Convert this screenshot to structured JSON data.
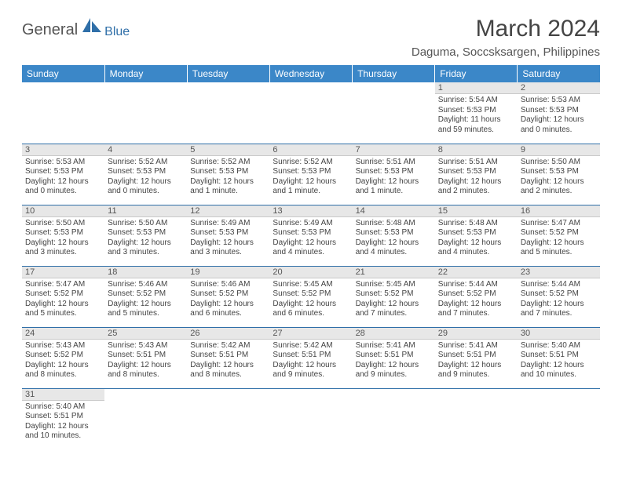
{
  "header": {
    "logo_general": "General",
    "logo_blue": "Blue",
    "title": "March 2024",
    "location": "Daguma, Soccsksargen, Philippines"
  },
  "styling": {
    "header_bg": "#3b87c8",
    "header_text": "#ffffff",
    "daynum_bg": "#e7e7e7",
    "border_color": "#2f6fa8",
    "page_bg": "#ffffff",
    "logo_blue_color": "#2f6fa8",
    "title_fontsize": 30,
    "location_fontsize": 15,
    "cell_fontsize": 10
  },
  "day_names": [
    "Sunday",
    "Monday",
    "Tuesday",
    "Wednesday",
    "Thursday",
    "Friday",
    "Saturday"
  ],
  "weeks": [
    [
      {
        "blank": true
      },
      {
        "blank": true
      },
      {
        "blank": true
      },
      {
        "blank": true
      },
      {
        "blank": true
      },
      {
        "day": "1",
        "sunrise": "Sunrise: 5:54 AM",
        "sunset": "Sunset: 5:53 PM",
        "daylight": "Daylight: 11 hours and 59 minutes."
      },
      {
        "day": "2",
        "sunrise": "Sunrise: 5:53 AM",
        "sunset": "Sunset: 5:53 PM",
        "daylight": "Daylight: 12 hours and 0 minutes."
      }
    ],
    [
      {
        "day": "3",
        "sunrise": "Sunrise: 5:53 AM",
        "sunset": "Sunset: 5:53 PM",
        "daylight": "Daylight: 12 hours and 0 minutes."
      },
      {
        "day": "4",
        "sunrise": "Sunrise: 5:52 AM",
        "sunset": "Sunset: 5:53 PM",
        "daylight": "Daylight: 12 hours and 0 minutes."
      },
      {
        "day": "5",
        "sunrise": "Sunrise: 5:52 AM",
        "sunset": "Sunset: 5:53 PM",
        "daylight": "Daylight: 12 hours and 1 minute."
      },
      {
        "day": "6",
        "sunrise": "Sunrise: 5:52 AM",
        "sunset": "Sunset: 5:53 PM",
        "daylight": "Daylight: 12 hours and 1 minute."
      },
      {
        "day": "7",
        "sunrise": "Sunrise: 5:51 AM",
        "sunset": "Sunset: 5:53 PM",
        "daylight": "Daylight: 12 hours and 1 minute."
      },
      {
        "day": "8",
        "sunrise": "Sunrise: 5:51 AM",
        "sunset": "Sunset: 5:53 PM",
        "daylight": "Daylight: 12 hours and 2 minutes."
      },
      {
        "day": "9",
        "sunrise": "Sunrise: 5:50 AM",
        "sunset": "Sunset: 5:53 PM",
        "daylight": "Daylight: 12 hours and 2 minutes."
      }
    ],
    [
      {
        "day": "10",
        "sunrise": "Sunrise: 5:50 AM",
        "sunset": "Sunset: 5:53 PM",
        "daylight": "Daylight: 12 hours and 3 minutes."
      },
      {
        "day": "11",
        "sunrise": "Sunrise: 5:50 AM",
        "sunset": "Sunset: 5:53 PM",
        "daylight": "Daylight: 12 hours and 3 minutes."
      },
      {
        "day": "12",
        "sunrise": "Sunrise: 5:49 AM",
        "sunset": "Sunset: 5:53 PM",
        "daylight": "Daylight: 12 hours and 3 minutes."
      },
      {
        "day": "13",
        "sunrise": "Sunrise: 5:49 AM",
        "sunset": "Sunset: 5:53 PM",
        "daylight": "Daylight: 12 hours and 4 minutes."
      },
      {
        "day": "14",
        "sunrise": "Sunrise: 5:48 AM",
        "sunset": "Sunset: 5:53 PM",
        "daylight": "Daylight: 12 hours and 4 minutes."
      },
      {
        "day": "15",
        "sunrise": "Sunrise: 5:48 AM",
        "sunset": "Sunset: 5:53 PM",
        "daylight": "Daylight: 12 hours and 4 minutes."
      },
      {
        "day": "16",
        "sunrise": "Sunrise: 5:47 AM",
        "sunset": "Sunset: 5:52 PM",
        "daylight": "Daylight: 12 hours and 5 minutes."
      }
    ],
    [
      {
        "day": "17",
        "sunrise": "Sunrise: 5:47 AM",
        "sunset": "Sunset: 5:52 PM",
        "daylight": "Daylight: 12 hours and 5 minutes."
      },
      {
        "day": "18",
        "sunrise": "Sunrise: 5:46 AM",
        "sunset": "Sunset: 5:52 PM",
        "daylight": "Daylight: 12 hours and 5 minutes."
      },
      {
        "day": "19",
        "sunrise": "Sunrise: 5:46 AM",
        "sunset": "Sunset: 5:52 PM",
        "daylight": "Daylight: 12 hours and 6 minutes."
      },
      {
        "day": "20",
        "sunrise": "Sunrise: 5:45 AM",
        "sunset": "Sunset: 5:52 PM",
        "daylight": "Daylight: 12 hours and 6 minutes."
      },
      {
        "day": "21",
        "sunrise": "Sunrise: 5:45 AM",
        "sunset": "Sunset: 5:52 PM",
        "daylight": "Daylight: 12 hours and 7 minutes."
      },
      {
        "day": "22",
        "sunrise": "Sunrise: 5:44 AM",
        "sunset": "Sunset: 5:52 PM",
        "daylight": "Daylight: 12 hours and 7 minutes."
      },
      {
        "day": "23",
        "sunrise": "Sunrise: 5:44 AM",
        "sunset": "Sunset: 5:52 PM",
        "daylight": "Daylight: 12 hours and 7 minutes."
      }
    ],
    [
      {
        "day": "24",
        "sunrise": "Sunrise: 5:43 AM",
        "sunset": "Sunset: 5:52 PM",
        "daylight": "Daylight: 12 hours and 8 minutes."
      },
      {
        "day": "25",
        "sunrise": "Sunrise: 5:43 AM",
        "sunset": "Sunset: 5:51 PM",
        "daylight": "Daylight: 12 hours and 8 minutes."
      },
      {
        "day": "26",
        "sunrise": "Sunrise: 5:42 AM",
        "sunset": "Sunset: 5:51 PM",
        "daylight": "Daylight: 12 hours and 8 minutes."
      },
      {
        "day": "27",
        "sunrise": "Sunrise: 5:42 AM",
        "sunset": "Sunset: 5:51 PM",
        "daylight": "Daylight: 12 hours and 9 minutes."
      },
      {
        "day": "28",
        "sunrise": "Sunrise: 5:41 AM",
        "sunset": "Sunset: 5:51 PM",
        "daylight": "Daylight: 12 hours and 9 minutes."
      },
      {
        "day": "29",
        "sunrise": "Sunrise: 5:41 AM",
        "sunset": "Sunset: 5:51 PM",
        "daylight": "Daylight: 12 hours and 9 minutes."
      },
      {
        "day": "30",
        "sunrise": "Sunrise: 5:40 AM",
        "sunset": "Sunset: 5:51 PM",
        "daylight": "Daylight: 12 hours and 10 minutes."
      }
    ],
    [
      {
        "day": "31",
        "sunrise": "Sunrise: 5:40 AM",
        "sunset": "Sunset: 5:51 PM",
        "daylight": "Daylight: 12 hours and 10 minutes."
      },
      {
        "blank": true
      },
      {
        "blank": true
      },
      {
        "blank": true
      },
      {
        "blank": true
      },
      {
        "blank": true
      },
      {
        "blank": true
      }
    ]
  ]
}
